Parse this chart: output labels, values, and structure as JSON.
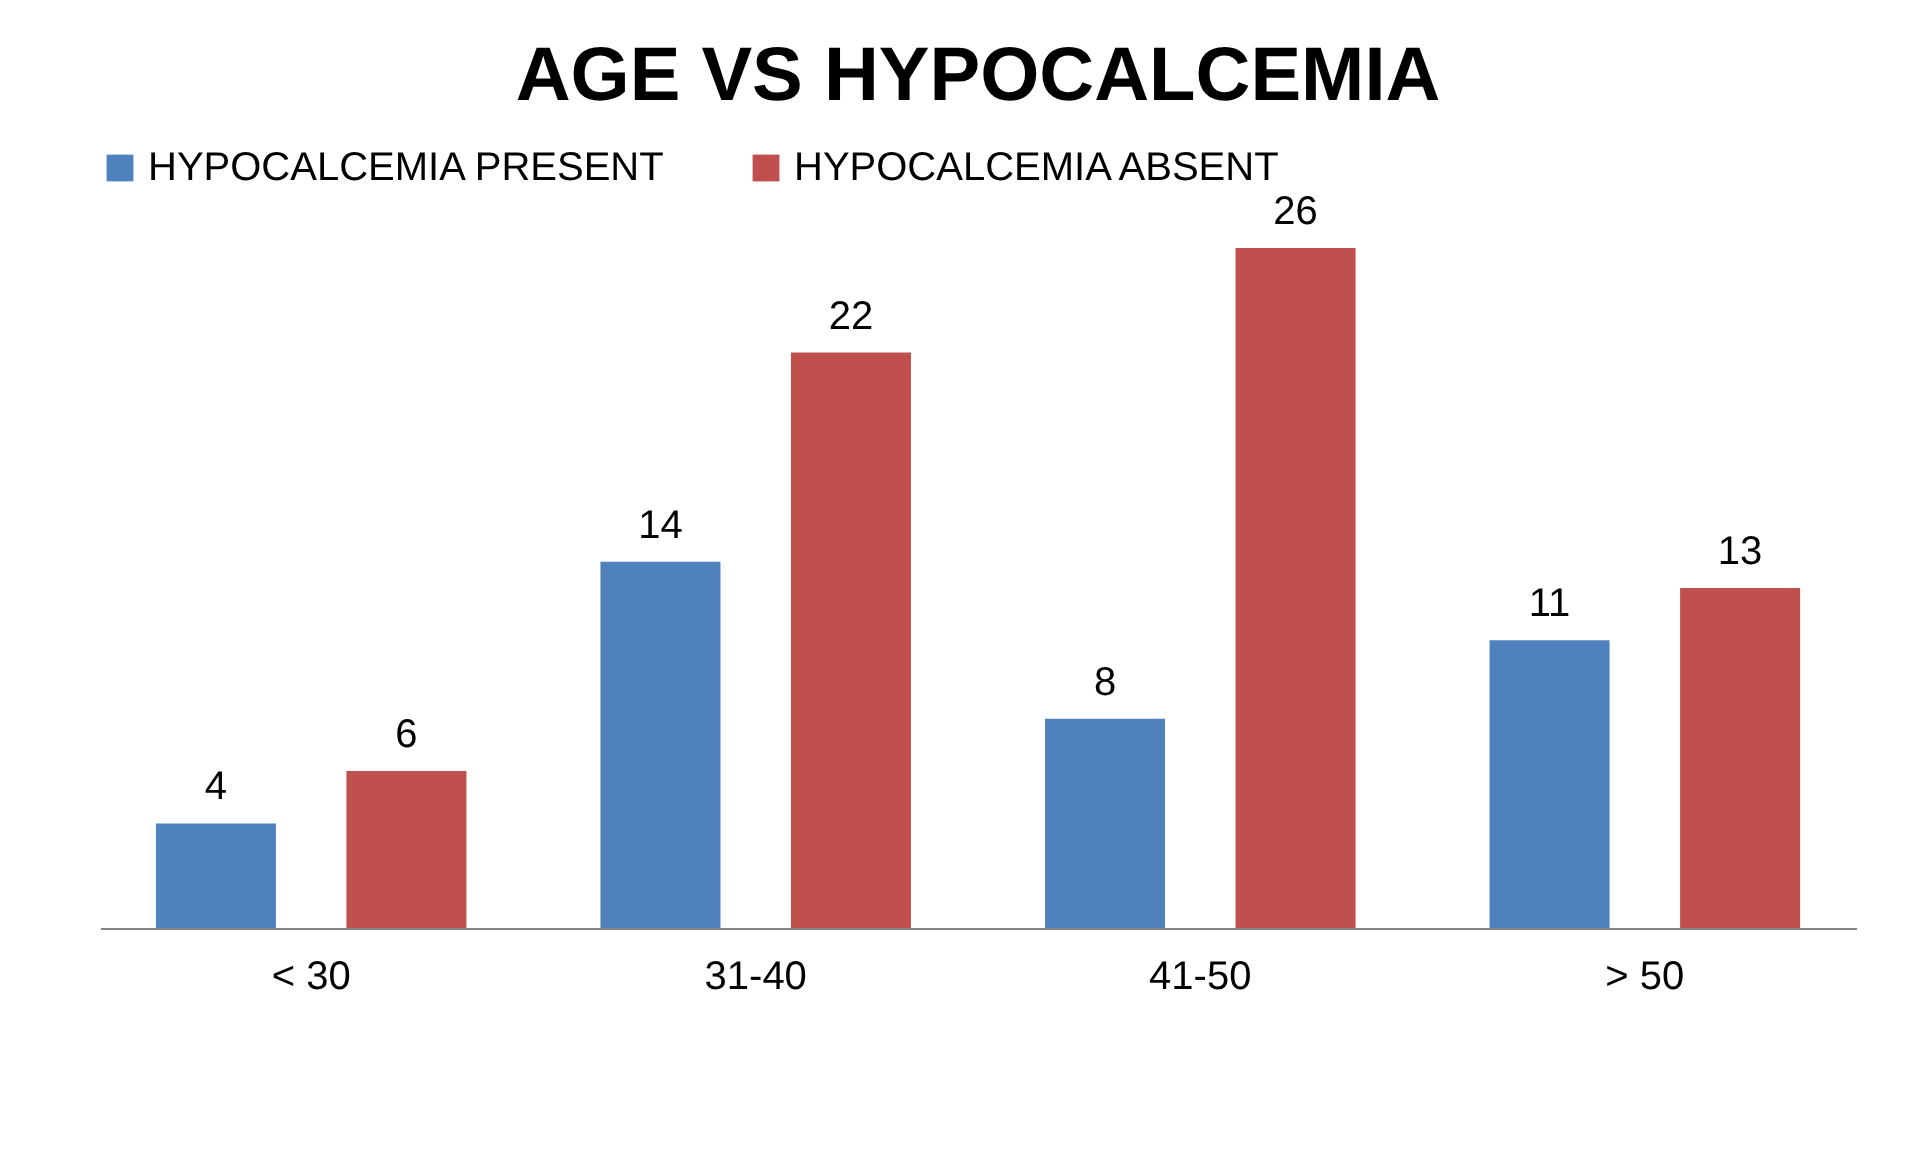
{
  "chart_data": {
    "type": "bar",
    "title": "AGE VS HYPOCALCEMIA",
    "categories": [
      "< 30",
      "31-40",
      "41-50",
      "> 50"
    ],
    "series": [
      {
        "name": "HYPOCALCEMIA PRESENT",
        "color": "#4f81bd",
        "values": [
          4,
          14,
          8,
          11
        ]
      },
      {
        "name": "HYPOCALCEMIA ABSENT",
        "color": "#c0504d",
        "values": [
          6,
          22,
          26,
          13
        ]
      }
    ],
    "data_labels": true,
    "legend": "top",
    "grid": false
  }
}
